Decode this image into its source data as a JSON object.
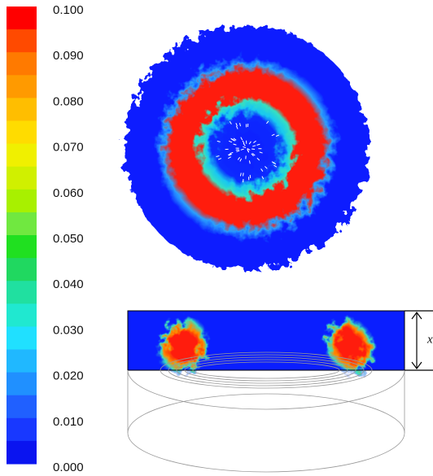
{
  "colorbar": {
    "labels": [
      "0.100",
      "0.090",
      "0.080",
      "0.070",
      "0.060",
      "0.050",
      "0.040",
      "0.030",
      "0.020",
      "0.010",
      "0.000"
    ]
  },
  "dimension_label": "x"
}
